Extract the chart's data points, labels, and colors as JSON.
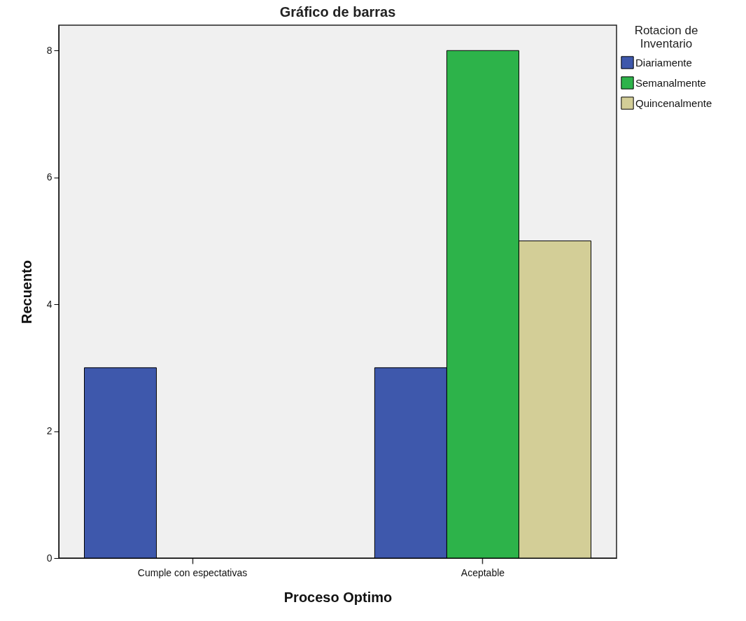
{
  "chart_data": {
    "type": "bar",
    "title": "Gráfico de barras",
    "xlabel": "Proceso Optimo",
    "ylabel": "Recuento",
    "legend_title": "Rotacion de Inventario",
    "categories": [
      "Cumple con espectativas",
      "Aceptable"
    ],
    "series": [
      {
        "name": "Diariamente",
        "color": "#3e58ac",
        "values": [
          3,
          3
        ]
      },
      {
        "name": "Semanalmente",
        "color": "#2db34a",
        "values": [
          null,
          8
        ]
      },
      {
        "name": "Quincenalmente",
        "color": "#d3ce97",
        "values": [
          null,
          5
        ]
      }
    ],
    "ylim": [
      0,
      8.4
    ],
    "yticks": [
      0,
      2,
      4,
      6,
      8
    ],
    "legend": "top right"
  }
}
